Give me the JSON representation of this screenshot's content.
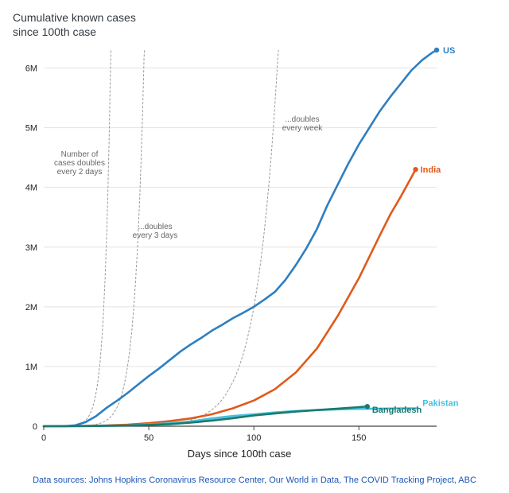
{
  "chart_data": {
    "type": "line",
    "title": [
      "Cumulative known cases",
      "since 100th case"
    ],
    "xlabel": "Days since 100th case",
    "ylabel": "",
    "xlim": [
      0,
      187
    ],
    "ylim": [
      0,
      6300000
    ],
    "x_ticks": [
      0,
      50,
      100,
      150
    ],
    "x_tick_labels": [
      "0",
      "50",
      "100",
      "150"
    ],
    "y_ticks": [
      0,
      1000000,
      2000000,
      3000000,
      4000000,
      5000000,
      6000000
    ],
    "y_tick_labels": [
      "0",
      "1M",
      "2M",
      "3M",
      "4M",
      "5M",
      "6M"
    ],
    "grid": "horizontal",
    "series": [
      {
        "name": "US",
        "color": "#2e7fc1",
        "end_marker": true,
        "x": [
          0,
          10,
          15,
          20,
          25,
          30,
          35,
          40,
          45,
          50,
          55,
          60,
          65,
          70,
          75,
          80,
          85,
          90,
          95,
          100,
          105,
          110,
          115,
          120,
          125,
          130,
          135,
          140,
          145,
          150,
          155,
          160,
          165,
          170,
          175,
          180,
          185,
          187
        ],
        "y": [
          100,
          1000,
          14000,
          70000,
          170000,
          310000,
          430000,
          560000,
          700000,
          840000,
          970000,
          1110000,
          1250000,
          1370000,
          1480000,
          1600000,
          1700000,
          1810000,
          1900000,
          2000000,
          2120000,
          2250000,
          2450000,
          2700000,
          2980000,
          3300000,
          3700000,
          4050000,
          4400000,
          4720000,
          5000000,
          5280000,
          5520000,
          5740000,
          5960000,
          6130000,
          6260000,
          6300000
        ]
      },
      {
        "name": "India",
        "color": "#e05a1a",
        "end_marker": true,
        "x": [
          0,
          10,
          20,
          30,
          40,
          50,
          60,
          70,
          80,
          90,
          100,
          110,
          120,
          130,
          140,
          150,
          160,
          165,
          170,
          177
        ],
        "y": [
          100,
          1500,
          5000,
          12000,
          25000,
          50000,
          85000,
          130000,
          200000,
          300000,
          430000,
          620000,
          900000,
          1300000,
          1850000,
          2480000,
          3200000,
          3550000,
          3850000,
          4300000
        ]
      },
      {
        "name": "Pakistan",
        "color": "#45c0e0",
        "end_marker": false,
        "x": [
          0,
          20,
          40,
          60,
          70,
          80,
          90,
          100,
          110,
          120,
          130,
          140,
          150,
          160,
          170,
          178
        ],
        "y": [
          100,
          3000,
          12000,
          50000,
          80000,
          130000,
          170000,
          200000,
          230000,
          255000,
          270000,
          283000,
          290000,
          295000,
          298000,
          300000
        ]
      },
      {
        "name": "Bangladesh",
        "color": "#1a7a6e",
        "end_marker": true,
        "x": [
          0,
          20,
          40,
          60,
          70,
          80,
          90,
          100,
          110,
          120,
          130,
          140,
          150,
          154
        ],
        "y": [
          100,
          2000,
          10000,
          35000,
          60000,
          95000,
          135000,
          180000,
          215000,
          245000,
          270000,
          295000,
          320000,
          330000
        ]
      }
    ],
    "guides": [
      {
        "label": [
          "Number of",
          "cases doubles",
          "every 2 days"
        ],
        "doubling_days": 2
      },
      {
        "label": [
          "...doubles",
          "every 3 days"
        ],
        "doubling_days": 3
      },
      {
        "label": [
          "...doubles",
          "every week"
        ],
        "doubling_days": 7
      }
    ],
    "source": "Data sources: Johns Hopkins Coronavirus Resource Center, Our World in Data, The COVID Tracking Project, ABC"
  }
}
